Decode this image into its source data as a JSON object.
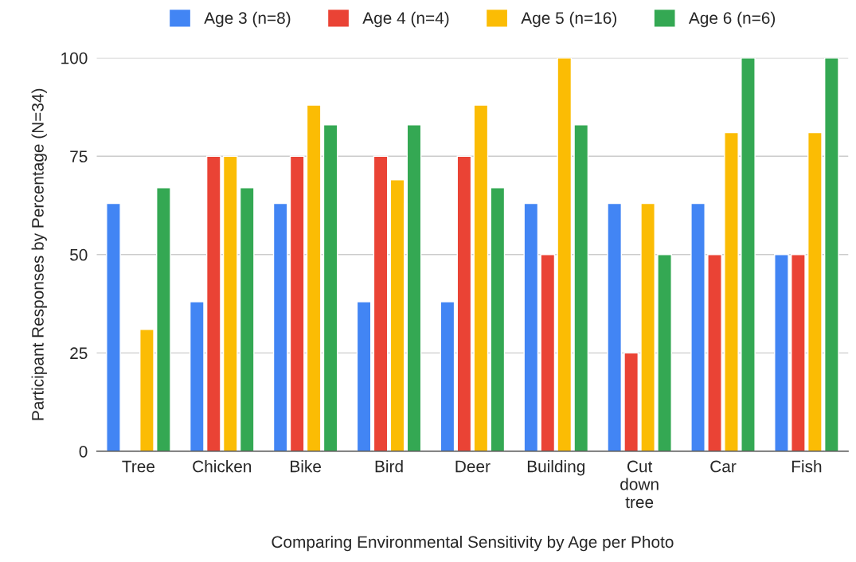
{
  "chart_data": {
    "type": "bar",
    "xlabel": "Comparing Environmental Sensitivity by Age per Photo",
    "ylabel": "Participant Responses by Percentage (N=34)",
    "categories": [
      "Tree",
      "Chicken",
      "Bike",
      "Bird",
      "Deer",
      "Building",
      "Cut down tree",
      "Car",
      "Fish"
    ],
    "series": [
      {
        "name": "Age 3 (n=8)",
        "color": "#4285f4",
        "values": [
          63,
          38,
          63,
          38,
          38,
          63,
          63,
          63,
          50
        ]
      },
      {
        "name": "Age 4 (n=4)",
        "color": "#ea4335",
        "values": [
          null,
          75,
          75,
          75,
          75,
          50,
          25,
          50,
          50
        ]
      },
      {
        "name": "Age 5 (n=16)",
        "color": "#fbbc04",
        "values": [
          31,
          75,
          88,
          69,
          88,
          100,
          63,
          81,
          81
        ]
      },
      {
        "name": "Age 6 (n=6)",
        "color": "#34a853",
        "values": [
          67,
          67,
          83,
          83,
          67,
          83,
          50,
          100,
          100
        ]
      }
    ],
    "ylim": [
      0,
      100
    ],
    "yticks": [
      0,
      25,
      50,
      75,
      100
    ],
    "grid": "y",
    "legend": "top"
  }
}
